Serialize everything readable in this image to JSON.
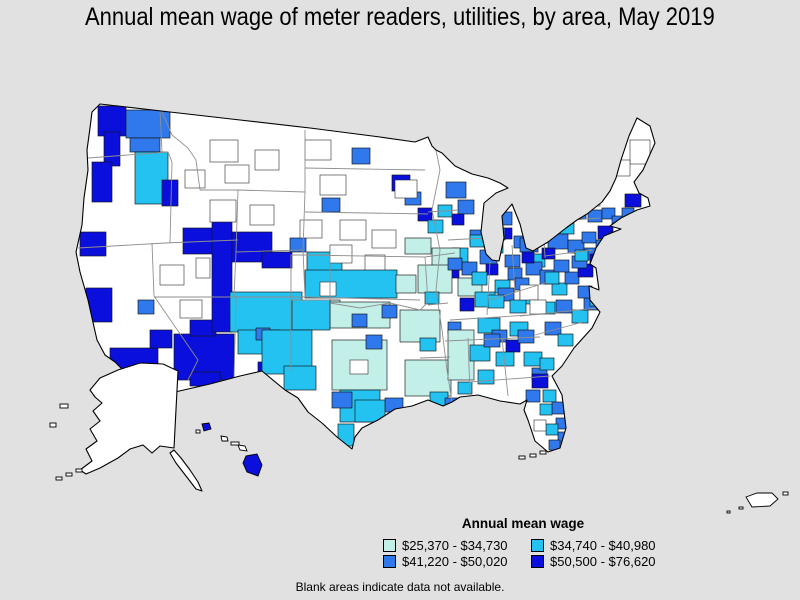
{
  "chart_data": {
    "type": "choropleth_map",
    "title": "Annual mean wage of meter readers, utilities, by area, May 2019",
    "region": "United States (metropolitan and nonmetropolitan areas, with Alaska, Hawaii, and Puerto Rico insets)",
    "legend_title": "Annual mean wage",
    "legend_position": "bottom-center",
    "classes": [
      {
        "label": "$25,370 - $34,730",
        "min": 25370,
        "max": 34730,
        "color": "#C3EFE9"
      },
      {
        "label": "$34,740 - $40,980",
        "min": 34740,
        "max": 40980,
        "color": "#24C2F0"
      },
      {
        "label": "$41,220 - $50,020",
        "min": 41220,
        "max": 50020,
        "color": "#2F79EC"
      },
      {
        "label": "$50,500 - $76,620",
        "min": 50500,
        "max": 76620,
        "color": "#0B0FDC"
      }
    ],
    "no_data_color": "#FFFFFF",
    "background_color": "#E1E1E1",
    "note": "Blank areas indicate data not available."
  }
}
